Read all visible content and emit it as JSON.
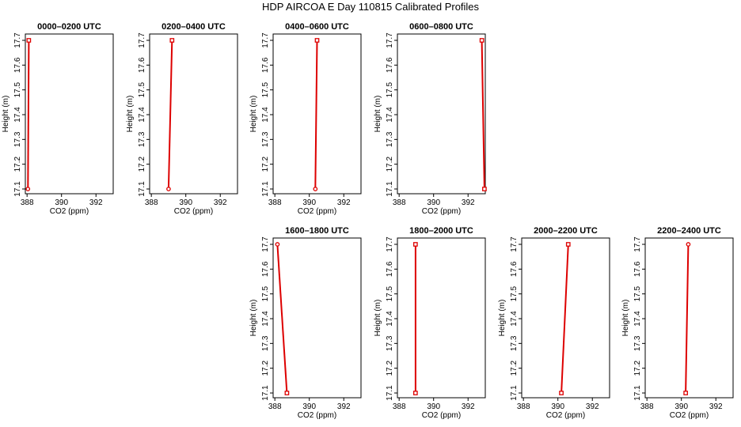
{
  "title": "HDP AIRCOA E  Day 110815  Calibrated Profiles",
  "colors": {
    "series": "#dd0000",
    "frame": "#000000",
    "background": "#ffffff"
  },
  "chart_data": [
    {
      "type": "line",
      "title": "0000–0200 UTC",
      "xlabel": "CO2 (ppm)",
      "ylabel": "Height (m)",
      "xlim": [
        387.9,
        393
      ],
      "ylim": [
        17.1,
        17.7
      ],
      "xticks": [
        "388",
        "390",
        "392"
      ],
      "yticks": [
        "17.1",
        "17.2",
        "17.3",
        "17.4",
        "17.5",
        "17.6",
        "17.7"
      ],
      "points": [
        {
          "x": 388.05,
          "y": 17.1,
          "marker": "circle"
        },
        {
          "x": 388.1,
          "y": 17.7,
          "marker": "square"
        }
      ]
    },
    {
      "type": "line",
      "title": "0200–0400 UTC",
      "xlabel": "CO2 (ppm)",
      "ylabel": "Height (m)",
      "xlim": [
        387.9,
        393
      ],
      "ylim": [
        17.1,
        17.7
      ],
      "xticks": [
        "388",
        "390",
        "392"
      ],
      "yticks": [
        "17.1",
        "17.2",
        "17.3",
        "17.4",
        "17.5",
        "17.6",
        "17.7"
      ],
      "points": [
        {
          "x": 389.0,
          "y": 17.1,
          "marker": "circle"
        },
        {
          "x": 389.2,
          "y": 17.7,
          "marker": "square"
        }
      ]
    },
    {
      "type": "line",
      "title": "0400–0600 UTC",
      "xlabel": "CO2 (ppm)",
      "ylabel": "Height (m)",
      "xlim": [
        387.9,
        393
      ],
      "ylim": [
        17.1,
        17.7
      ],
      "xticks": [
        "388",
        "390",
        "392"
      ],
      "yticks": [
        "17.1",
        "17.2",
        "17.3",
        "17.4",
        "17.5",
        "17.6",
        "17.7"
      ],
      "points": [
        {
          "x": 390.35,
          "y": 17.1,
          "marker": "circle"
        },
        {
          "x": 390.45,
          "y": 17.7,
          "marker": "square"
        }
      ]
    },
    {
      "type": "line",
      "title": "0600–0800 UTC",
      "xlabel": "CO2 (ppm)",
      "ylabel": "Height (m)",
      "xlim": [
        387.9,
        393
      ],
      "ylim": [
        17.1,
        17.7
      ],
      "xticks": [
        "388",
        "390",
        "392"
      ],
      "yticks": [
        "17.1",
        "17.2",
        "17.3",
        "17.4",
        "17.5",
        "17.6",
        "17.7"
      ],
      "points": [
        {
          "x": 392.95,
          "y": 17.1,
          "marker": "square"
        },
        {
          "x": 392.8,
          "y": 17.7,
          "marker": "square"
        }
      ]
    },
    {
      "type": "line",
      "title": "1600–1800 UTC",
      "xlabel": "CO2 (ppm)",
      "ylabel": "Height (m)",
      "xlim": [
        387.9,
        393
      ],
      "ylim": [
        17.1,
        17.7
      ],
      "xticks": [
        "388",
        "390",
        "392"
      ],
      "yticks": [
        "17.1",
        "17.2",
        "17.3",
        "17.4",
        "17.5",
        "17.6",
        "17.7"
      ],
      "points": [
        {
          "x": 388.7,
          "y": 17.1,
          "marker": "square"
        },
        {
          "x": 388.15,
          "y": 17.7,
          "marker": "circle"
        }
      ]
    },
    {
      "type": "line",
      "title": "1800–2000 UTC",
      "xlabel": "CO2 (ppm)",
      "ylabel": "Height (m)",
      "xlim": [
        387.9,
        393
      ],
      "ylim": [
        17.1,
        17.7
      ],
      "xticks": [
        "388",
        "390",
        "392"
      ],
      "yticks": [
        "17.1",
        "17.2",
        "17.3",
        "17.4",
        "17.5",
        "17.6",
        "17.7"
      ],
      "points": [
        {
          "x": 388.95,
          "y": 17.1,
          "marker": "square"
        },
        {
          "x": 388.95,
          "y": 17.7,
          "marker": "square"
        }
      ]
    },
    {
      "type": "line",
      "title": "2000–2200 UTC",
      "xlabel": "CO2 (ppm)",
      "ylabel": "Height (m)",
      "xlim": [
        387.9,
        393
      ],
      "ylim": [
        17.1,
        17.7
      ],
      "xticks": [
        "388",
        "390",
        "392"
      ],
      "yticks": [
        "17.1",
        "17.2",
        "17.3",
        "17.4",
        "17.5",
        "17.6",
        "17.7"
      ],
      "points": [
        {
          "x": 390.2,
          "y": 17.1,
          "marker": "square"
        },
        {
          "x": 390.6,
          "y": 17.7,
          "marker": "square"
        }
      ]
    },
    {
      "type": "line",
      "title": "2200–2400 UTC",
      "xlabel": "CO2 (ppm)",
      "ylabel": "Height (m)",
      "xlim": [
        387.9,
        393
      ],
      "ylim": [
        17.1,
        17.7
      ],
      "xticks": [
        "388",
        "390",
        "392"
      ],
      "yticks": [
        "17.1",
        "17.2",
        "17.3",
        "17.4",
        "17.5",
        "17.6",
        "17.7"
      ],
      "points": [
        {
          "x": 390.25,
          "y": 17.1,
          "marker": "square"
        },
        {
          "x": 390.4,
          "y": 17.7,
          "marker": "circle"
        }
      ]
    }
  ]
}
